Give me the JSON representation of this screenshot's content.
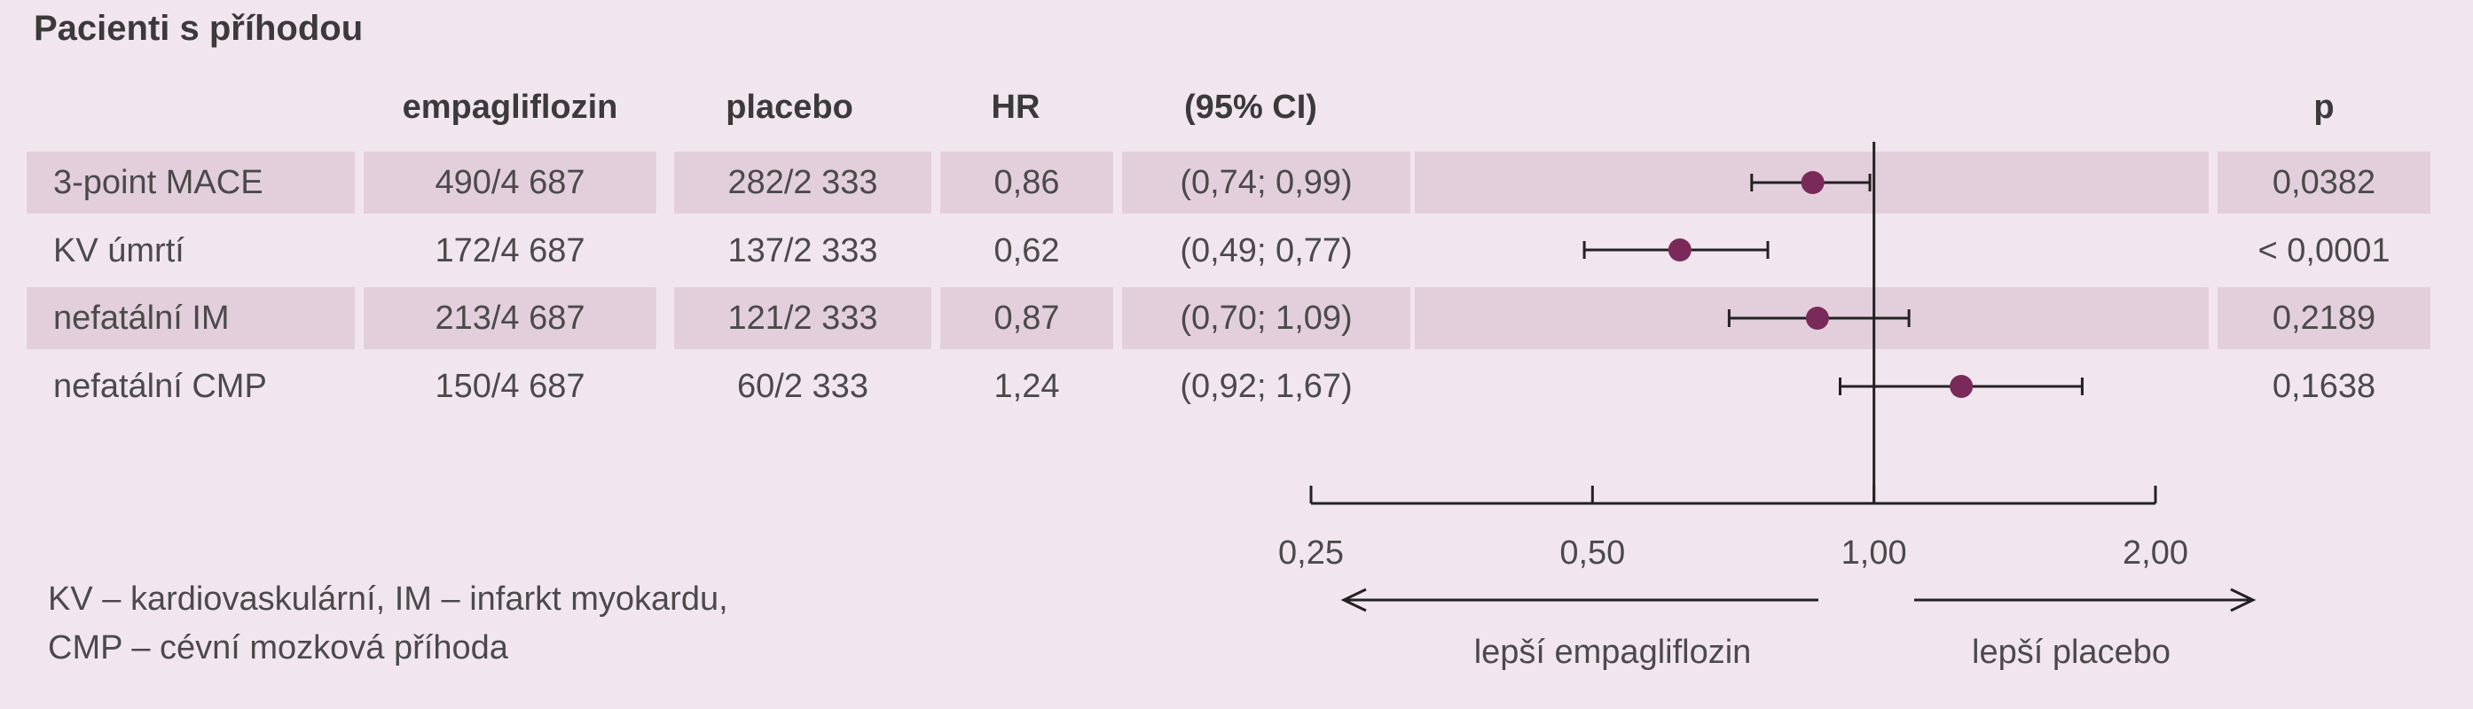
{
  "title": "Pacienti s příhodou",
  "headers": {
    "drug": "empagliflozin",
    "placebo": "placebo",
    "hr": "HR",
    "ci": "(95% CI)",
    "p": "p"
  },
  "rows": [
    {
      "label": "3-point MACE",
      "drug": "490/4 687",
      "placebo": "282/2 333",
      "hr": "0,86",
      "ci": "(0,74; 0,99)",
      "p": "0,0382"
    },
    {
      "label": "KV úmrtí",
      "drug": "172/4 687",
      "placebo": "137/2 333",
      "hr": "0,62",
      "ci": "(0,49; 0,77)",
      "p": "< 0,0001"
    },
    {
      "label": "nefatální IM",
      "drug": "213/4 687",
      "placebo": "121/2 333",
      "hr": "0,87",
      "ci": "(0,70; 1,09)",
      "p": "0,2189"
    },
    {
      "label": "nefatální CMP",
      "drug": "150/4 687",
      "placebo": "60/2 333",
      "hr": "1,24",
      "ci": "(0,92; 1,67)",
      "p": "0,1638"
    }
  ],
  "footnote": {
    "line1": "KV – kardiovaskulární, IM – infarkt myokardu,",
    "line2": "CMP – cévní mozková příhoda"
  },
  "direction": {
    "left": "lepší empagliflozin",
    "right": "lepší placebo"
  },
  "colors": {
    "background": "#f2e6ee",
    "band": "#e3cfdc",
    "point": "#7a2a5a",
    "line": "#222222"
  },
  "chart_data": {
    "type": "forest",
    "scale": "log",
    "x_ticks": [
      0.25,
      0.5,
      1.0,
      2.0
    ],
    "x_tick_labels": [
      "0,25",
      "0,50",
      "1,00",
      "2,00"
    ],
    "xlim": [
      0.25,
      2.0
    ],
    "reference": 1.0,
    "points": [
      {
        "label": "3-point MACE",
        "hr": 0.86,
        "lo": 0.74,
        "hi": 0.99
      },
      {
        "label": "KV úmrtí",
        "hr": 0.62,
        "lo": 0.49,
        "hi": 0.77
      },
      {
        "label": "nefatální IM",
        "hr": 0.87,
        "lo": 0.7,
        "hi": 1.09
      },
      {
        "label": "nefatální CMP",
        "hr": 1.24,
        "lo": 0.92,
        "hi": 1.67
      }
    ]
  }
}
